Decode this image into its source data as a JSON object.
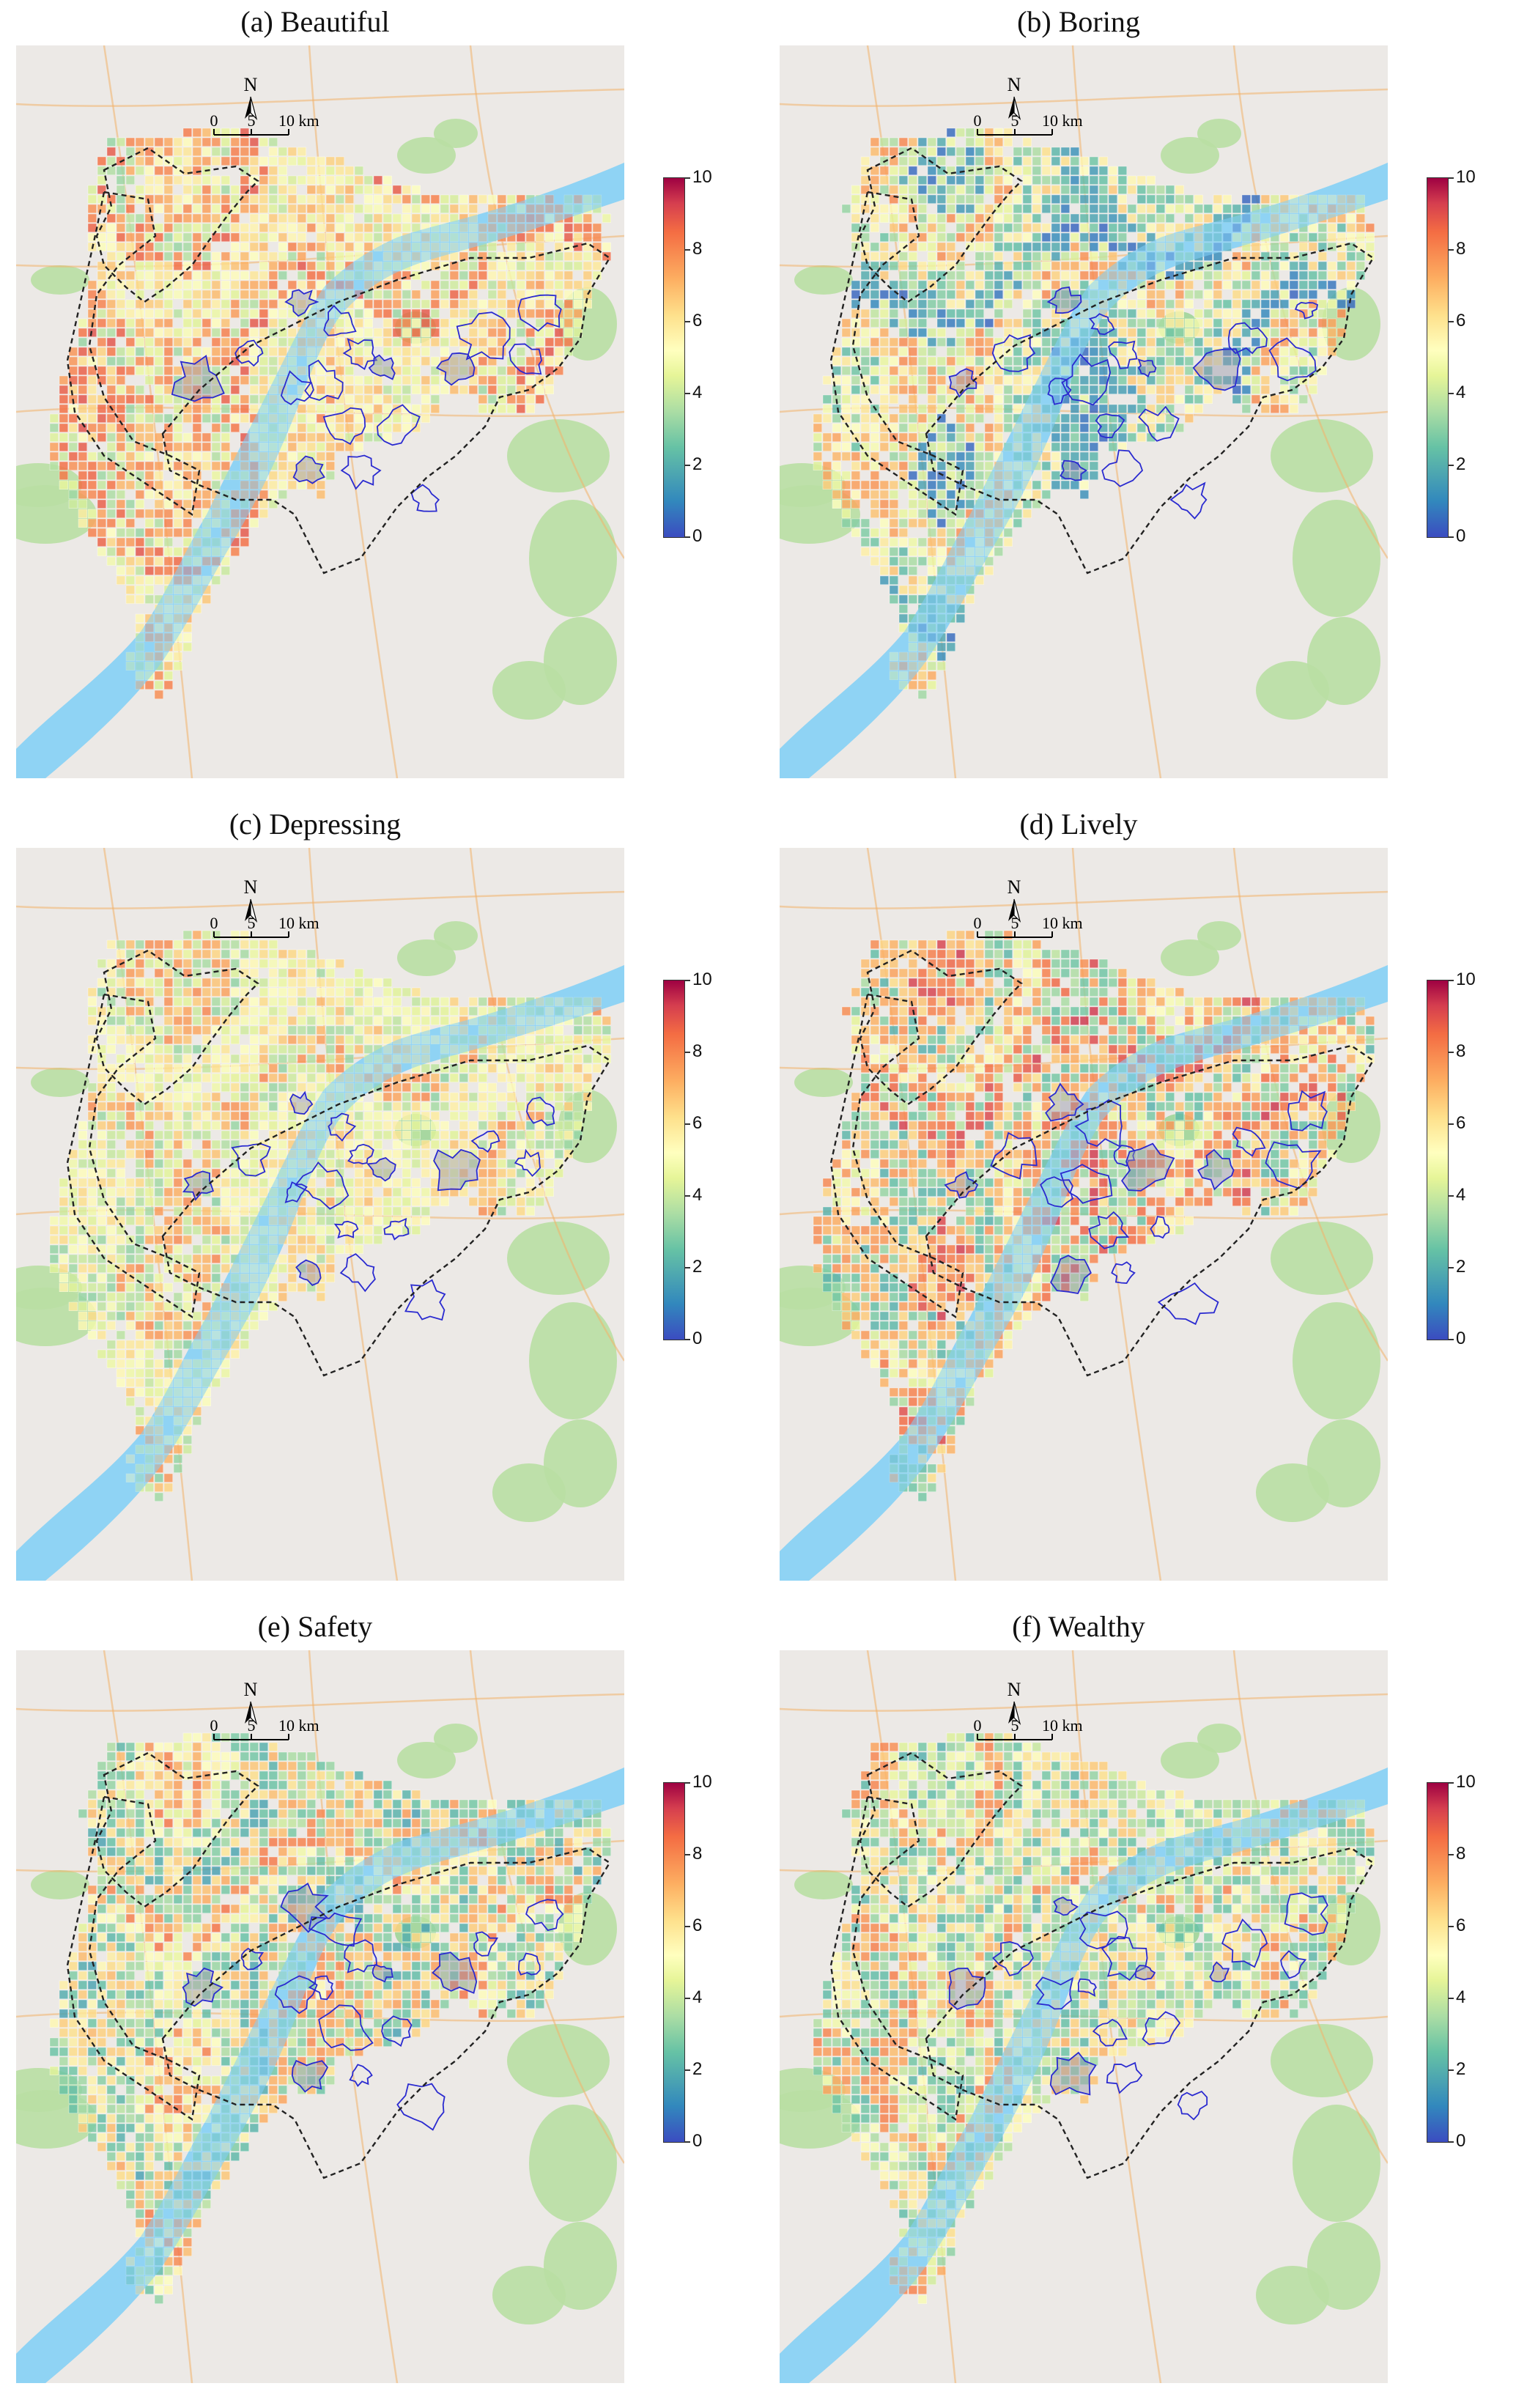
{
  "panels": [
    {
      "id": "a",
      "title": "(a) Beautiful",
      "palette": [
        4.5,
        6.5,
        5.2,
        7.5,
        4.0,
        8.2,
        5.8
      ]
    },
    {
      "id": "b",
      "title": "(b) Boring",
      "palette": [
        6.0,
        2.2,
        1.2,
        4.0,
        7.2,
        5.2,
        3.0
      ]
    },
    {
      "id": "c",
      "title": "(c) Depressing",
      "palette": [
        5.0,
        6.2,
        4.2,
        7.2,
        3.8,
        5.6,
        4.6
      ]
    },
    {
      "id": "d",
      "title": "(d) Lively",
      "palette": [
        7.8,
        3.2,
        8.6,
        6.8,
        2.8,
        7.2,
        5.0
      ]
    },
    {
      "id": "e",
      "title": "(e) Safety",
      "palette": [
        6.8,
        3.4,
        7.6,
        5.2,
        3.0,
        6.2,
        2.4
      ]
    },
    {
      "id": "f",
      "title": "(f) Wealthy",
      "palette": [
        3.4,
        6.4,
        2.8,
        4.4,
        7.4,
        3.0,
        5.6
      ]
    }
  ],
  "north_label": "N",
  "scale_bar": {
    "labels": [
      "0",
      "5",
      "10 km"
    ]
  },
  "colorbar": {
    "min": 0,
    "max": 10,
    "ticks": [
      "0",
      "2",
      "4",
      "6",
      "8",
      "10"
    ]
  },
  "colors": {
    "background": "#ece9e6",
    "water": "#8fd3f4",
    "green": "#b9dfa3",
    "roads": "#f3b36a",
    "boundary": "#222222",
    "clusters": "#2a2ad0"
  }
}
